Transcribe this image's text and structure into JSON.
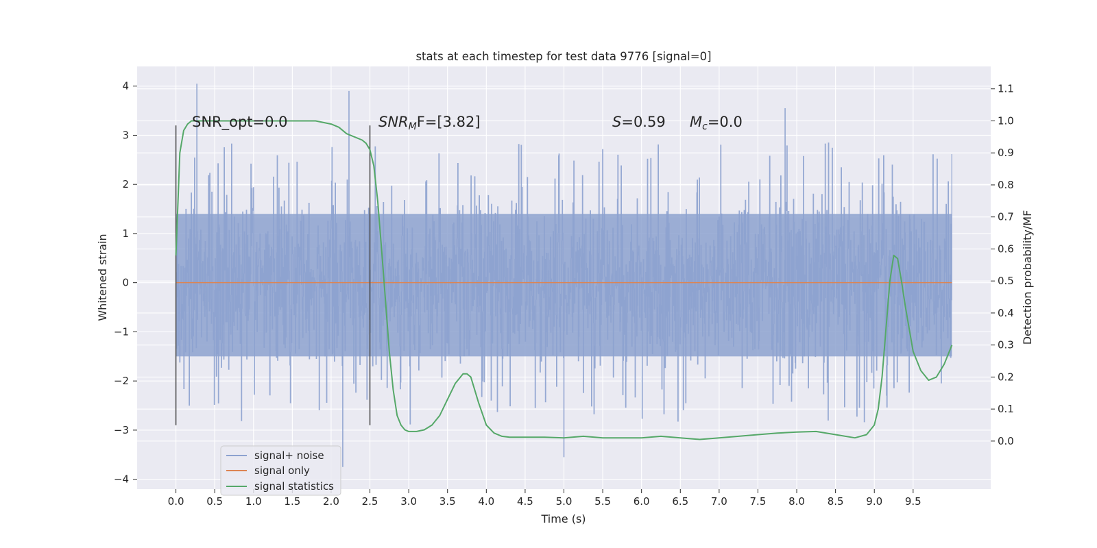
{
  "chart_data": {
    "type": "line",
    "title": "stats at each timestep for test data 9776 [signal=0]",
    "xlabel": "Time (s)",
    "ylabel_left": "Whitened strain",
    "ylabel_right": "Detection probability/MF",
    "xlim": [
      -0.5,
      10.5
    ],
    "ylim_left": [
      -4.2,
      4.4
    ],
    "ylim_right": [
      -0.15,
      1.17
    ],
    "x_ticks": [
      "0.0",
      "0.5",
      "1.0",
      "1.5",
      "2.0",
      "2.5",
      "3.0",
      "3.5",
      "4.0",
      "4.5",
      "5.0",
      "5.5",
      "6.0",
      "6.5",
      "7.0",
      "7.5",
      "8.0",
      "8.5",
      "9.0",
      "9.5"
    ],
    "y_left_ticks": [
      "4",
      "3",
      "2",
      "1",
      "0",
      "−1",
      "−2",
      "−3",
      "−4"
    ],
    "y_right_ticks": [
      "1.1",
      "1.0",
      "0.9",
      "0.8",
      "0.7",
      "0.6",
      "0.5",
      "0.4",
      "0.3",
      "0.2",
      "0.1",
      "0.0"
    ],
    "grid": true,
    "legend_position": "lower-left",
    "colors": {
      "signal_noise": "#8da2cf",
      "signal_only": "#dd8452",
      "signal_statistics": "#55a868",
      "plot_bg": "#eaeaf2",
      "grid": "#ffffff",
      "vline": "#444444"
    },
    "annotations": {
      "snr_opt": "SNR_opt=0.0",
      "snr_mf_italic": "SNR",
      "snr_mf_sub": "M",
      "snr_mf_rest": "F=[3.82]",
      "s_italic": "S",
      "s_rest": "=0.59",
      "mc_italic": "M",
      "mc_sub": "c",
      "mc_rest": "=0.0"
    },
    "vlines": [
      {
        "x": 0.0,
        "y_range": [
          -2.9,
          3.2
        ]
      },
      {
        "x": 2.5,
        "y_range": [
          -2.9,
          3.2
        ]
      }
    ],
    "series": [
      {
        "name": "signal+ noise",
        "axis": "left",
        "x_range": [
          0.0,
          10.0
        ],
        "envelope": {
          "core": [
            -1.5,
            1.4
          ],
          "typical_peaks": [
            -2.6,
            2.7
          ],
          "max": 4.05,
          "min": -3.7
        }
      },
      {
        "name": "signal only",
        "axis": "left",
        "x": [
          0.0,
          10.0
        ],
        "y": [
          0.0,
          0.0
        ]
      },
      {
        "name": "signal statistics",
        "axis": "right",
        "x": [
          0.0,
          0.05,
          0.1,
          0.15,
          0.2,
          0.3,
          0.5,
          1.0,
          1.5,
          1.8,
          2.0,
          2.1,
          2.2,
          2.3,
          2.4,
          2.45,
          2.5,
          2.55,
          2.6,
          2.65,
          2.7,
          2.75,
          2.8,
          2.85,
          2.9,
          2.95,
          3.0,
          3.1,
          3.2,
          3.3,
          3.4,
          3.5,
          3.6,
          3.7,
          3.75,
          3.8,
          3.9,
          4.0,
          4.1,
          4.2,
          4.3,
          4.5,
          4.75,
          5.0,
          5.25,
          5.5,
          5.75,
          6.0,
          6.25,
          6.5,
          6.75,
          7.0,
          7.25,
          7.5,
          7.75,
          8.0,
          8.25,
          8.5,
          8.75,
          8.9,
          9.0,
          9.05,
          9.1,
          9.15,
          9.2,
          9.25,
          9.3,
          9.35,
          9.4,
          9.5,
          9.6,
          9.7,
          9.8,
          9.9,
          10.0
        ],
        "y": [
          0.58,
          0.9,
          0.97,
          0.99,
          1.0,
          1.0,
          1.0,
          1.0,
          1.0,
          1.0,
          0.99,
          0.98,
          0.96,
          0.95,
          0.94,
          0.93,
          0.91,
          0.86,
          0.75,
          0.6,
          0.44,
          0.28,
          0.16,
          0.08,
          0.05,
          0.035,
          0.03,
          0.03,
          0.035,
          0.05,
          0.08,
          0.13,
          0.18,
          0.21,
          0.21,
          0.2,
          0.12,
          0.05,
          0.025,
          0.015,
          0.012,
          0.012,
          0.012,
          0.01,
          0.015,
          0.01,
          0.01,
          0.01,
          0.015,
          0.01,
          0.005,
          0.01,
          0.015,
          0.02,
          0.025,
          0.028,
          0.03,
          0.02,
          0.01,
          0.02,
          0.05,
          0.1,
          0.2,
          0.35,
          0.5,
          0.58,
          0.57,
          0.5,
          0.42,
          0.28,
          0.22,
          0.19,
          0.2,
          0.24,
          0.3
        ]
      }
    ]
  }
}
